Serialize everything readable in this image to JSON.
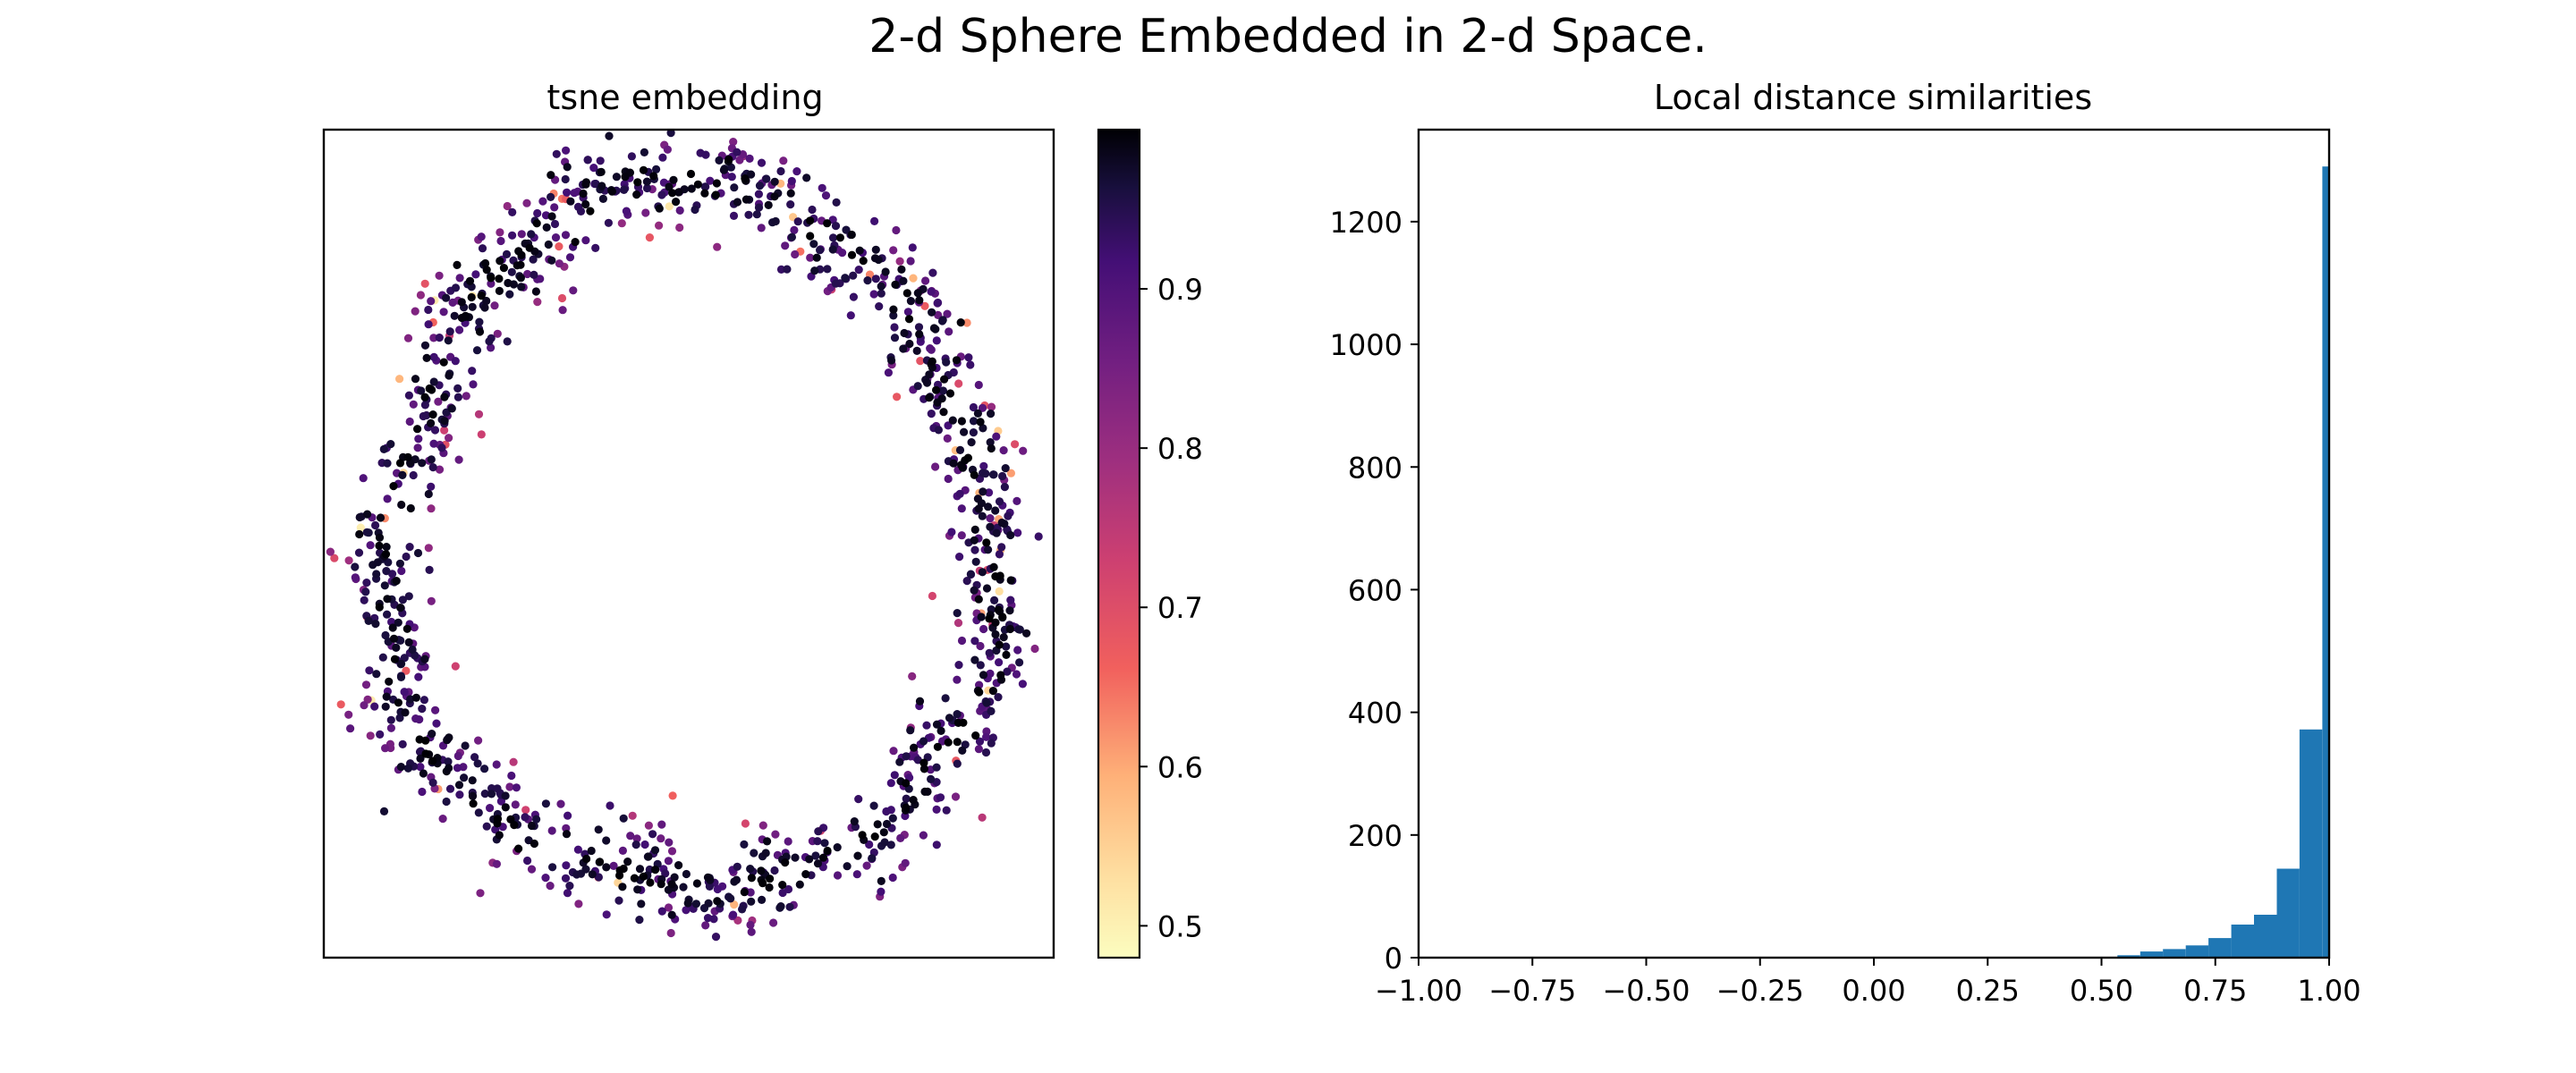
{
  "figure": {
    "suptitle": "2-d Sphere Embedded in 2-d Space."
  },
  "chart_data": [
    {
      "type": "scatter",
      "title": "tsne embedding",
      "xlabel": "",
      "ylabel": "",
      "ticks_visible": false,
      "colormap": "magma_r",
      "color_range": [
        0.48,
        1.0
      ],
      "colorbar_ticks": [
        0.5,
        0.6,
        0.7,
        0.8,
        0.9
      ],
      "colorbar_tick_labels": [
        "0.5",
        "0.6",
        "0.7",
        "0.8",
        "0.9"
      ],
      "xlim": [
        -1.15,
        1.15
      ],
      "ylim": [
        -1.15,
        1.15
      ],
      "point_count": 1300,
      "shape": "ring",
      "ring": {
        "center": [
          0.0,
          0.0
        ],
        "anchors": [
          [
            0.0,
            1.02
          ],
          [
            0.55,
            0.78
          ],
          [
            0.86,
            0.33
          ],
          [
            0.96,
            -0.25
          ],
          [
            0.7,
            -0.7
          ],
          [
            0.2,
            -0.95
          ],
          [
            -0.3,
            -0.88
          ],
          [
            -0.8,
            -0.6
          ],
          [
            -0.95,
            -0.1
          ],
          [
            -0.8,
            0.45
          ],
          [
            -0.45,
            0.88
          ]
        ],
        "thickness": 0.12
      },
      "value_distribution": {
        "min": 0.48,
        "max": 1.0,
        "mode": 0.98
      },
      "grid": false,
      "legend": "none"
    },
    {
      "type": "bar",
      "subtype": "histogram",
      "title": "Local distance similarities",
      "xlabel": "",
      "ylabel": "",
      "xlim": [
        -1.0,
        1.0
      ],
      "ylim": [
        0,
        1350
      ],
      "xticks": [
        -1.0,
        -0.75,
        -0.5,
        -0.25,
        0.0,
        0.25,
        0.5,
        0.75,
        1.0
      ],
      "xtick_labels": [
        "−1.00",
        "−0.75",
        "−0.50",
        "−0.25",
        "0.00",
        "0.25",
        "0.50",
        "0.75",
        "1.00"
      ],
      "yticks": [
        0,
        200,
        400,
        600,
        800,
        1000,
        1200
      ],
      "ytick_labels": [
        "0",
        "200",
        "400",
        "600",
        "800",
        "1000",
        "1200"
      ],
      "bin_edges": [
        0.535,
        0.585,
        0.635,
        0.685,
        0.735,
        0.785,
        0.835,
        0.885,
        0.935,
        0.985,
        1.035
      ],
      "values": [
        4,
        10,
        14,
        20,
        32,
        54,
        70,
        145,
        372,
        1290
      ],
      "color": "#1f77b4",
      "grid": false,
      "legend": "none"
    }
  ]
}
